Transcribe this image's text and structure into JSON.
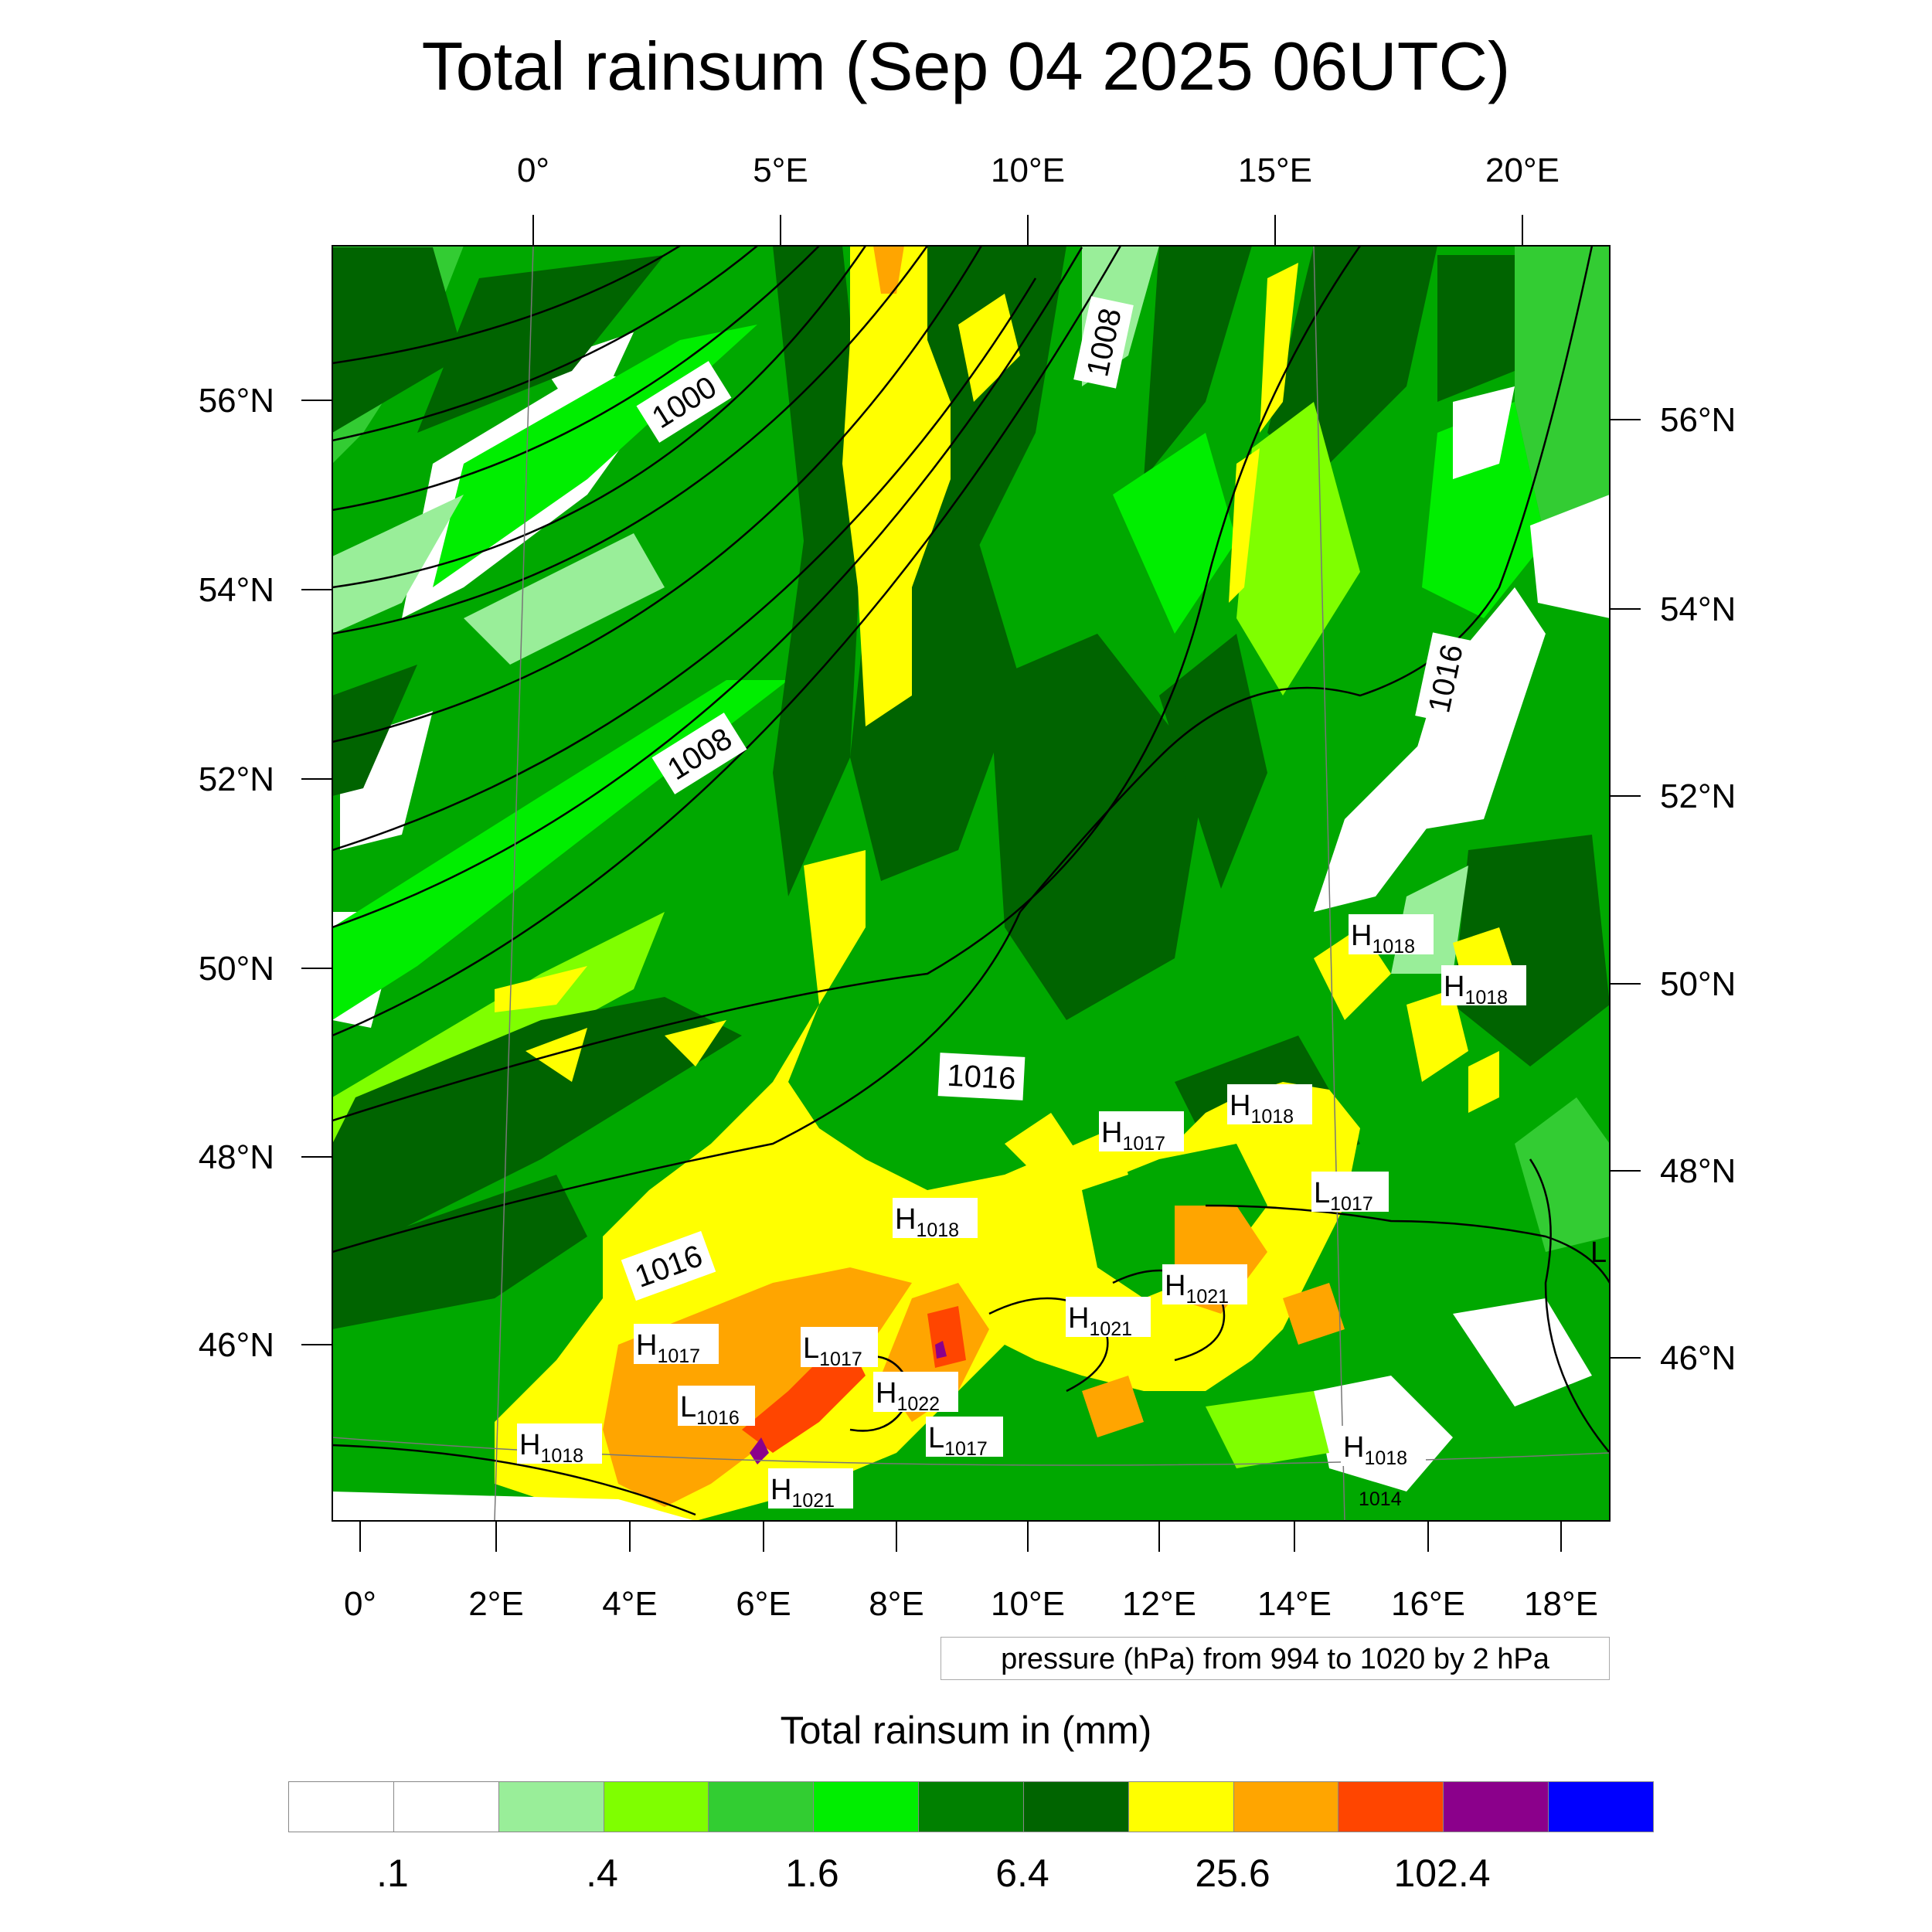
{
  "title": "Total rainsum (Sep 04 2025 06UTC)",
  "axes": {
    "top_lon": [
      "0°",
      "5°E",
      "10°E",
      "15°E",
      "20°E"
    ],
    "bottom_lon": [
      "0°",
      "2°E",
      "4°E",
      "6°E",
      "8°E",
      "10°E",
      "12°E",
      "14°E",
      "16°E",
      "18°E"
    ],
    "left_lat": [
      "56°N",
      "54°N",
      "52°N",
      "50°N",
      "48°N",
      "46°N"
    ],
    "right_lat": [
      "56°N",
      "54°N",
      "52°N",
      "50°N",
      "48°N",
      "46°N"
    ]
  },
  "isobar_labels": [
    "1000",
    "1008",
    "1008",
    "1016",
    "1016",
    "1016"
  ],
  "pressure_centers": [
    {
      "type": "H",
      "value": "1018"
    },
    {
      "type": "H",
      "value": "1018"
    },
    {
      "type": "H",
      "value": "1018"
    },
    {
      "type": "H",
      "value": "1017"
    },
    {
      "type": "L",
      "value": "1017"
    },
    {
      "type": "H",
      "value": "1018"
    },
    {
      "type": "H",
      "value": "1021"
    },
    {
      "type": "H",
      "value": "1021"
    },
    {
      "type": "H",
      "value": "1017"
    },
    {
      "type": "L",
      "value": "1017"
    },
    {
      "type": "L",
      "value": "1016"
    },
    {
      "type": "H",
      "value": "1022"
    },
    {
      "type": "L",
      "value": "1017"
    },
    {
      "type": "H",
      "value": "1018"
    },
    {
      "type": "H",
      "value": "1021"
    },
    {
      "type": "H",
      "value": "1018"
    }
  ],
  "edge_mark": "L",
  "lowest_label": "1014",
  "pressure_info": "pressure (hPa) from 994 to 1020 by 2 hPa",
  "colorbar": {
    "title": "Total rainsum in (mm)",
    "colors": [
      "#ffffff",
      "#ffffff",
      "#99ee99",
      "#7fff00",
      "#32cd32",
      "#00ee00",
      "#008000",
      "#006400",
      "#ffff00",
      "#ffa500",
      "#ff4500",
      "#8b008b",
      "#0000ff"
    ],
    "labels": [
      ".1",
      ".4",
      "1.6",
      "6.4",
      "25.6",
      "102.4"
    ]
  }
}
